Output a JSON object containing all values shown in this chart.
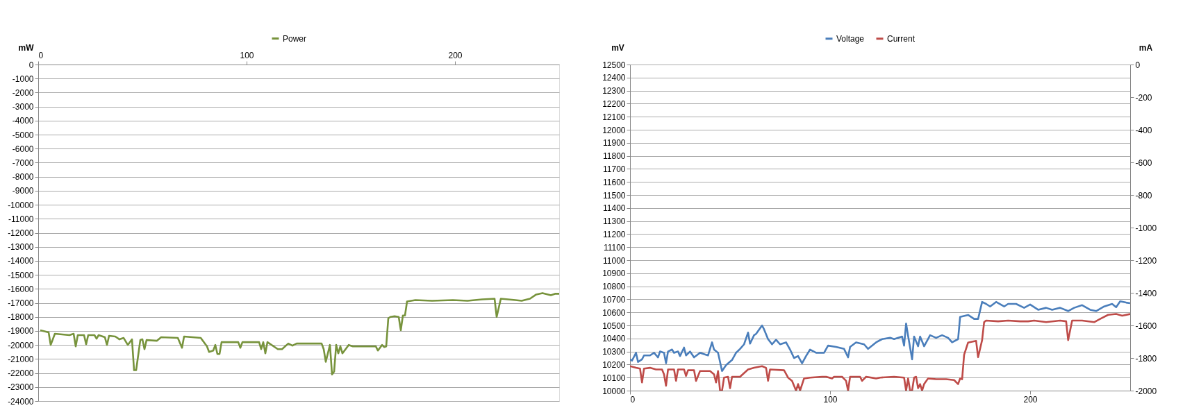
{
  "chart_data": [
    {
      "type": "line",
      "ylabel": "mW",
      "xlim": [
        0,
        250
      ],
      "xticks": [
        0,
        100,
        200
      ],
      "ylim": [
        -24000,
        0
      ],
      "yticks": [
        0,
        -1000,
        -2000,
        -3000,
        -4000,
        -5000,
        -6000,
        -7000,
        -8000,
        -9000,
        -10000,
        -11000,
        -12000,
        -13000,
        -14000,
        -15000,
        -16000,
        -17000,
        -18000,
        -19000,
        -20000,
        -21000,
        -22000,
        -23000,
        -24000
      ],
      "grid": "y",
      "legend": "top",
      "marker": "none",
      "line_style": "solid",
      "series": [
        {
          "name": "Power",
          "color": "#77933c",
          "x": [
            1,
            5,
            6,
            8,
            15,
            17,
            18,
            19,
            22,
            23,
            24,
            27,
            28,
            29,
            32,
            33,
            34,
            37,
            39,
            41,
            43,
            45,
            46,
            47,
            49,
            50,
            51,
            52,
            57,
            59,
            67,
            69,
            70,
            78,
            81,
            82,
            84,
            85,
            86,
            87,
            88,
            96,
            97,
            98,
            106,
            107,
            108,
            109,
            110,
            115,
            117,
            120,
            122,
            124,
            136,
            137,
            138,
            140,
            141,
            142,
            143,
            144,
            145,
            146,
            149,
            151,
            162,
            163,
            165,
            166,
            167,
            168,
            169,
            171,
            173,
            174,
            175,
            176,
            177,
            181,
            189,
            199,
            206,
            213,
            219,
            220,
            222,
            229,
            232,
            236,
            239,
            242,
            246,
            248,
            250
          ],
          "values": [
            -18950,
            -19100,
            -20000,
            -19200,
            -19300,
            -19200,
            -20100,
            -19300,
            -19300,
            -19950,
            -19300,
            -19300,
            -19550,
            -19300,
            -19450,
            -20000,
            -19350,
            -19400,
            -19600,
            -19500,
            -20000,
            -19600,
            -21800,
            -21800,
            -19650,
            -19600,
            -20300,
            -19650,
            -19700,
            -19450,
            -19500,
            -20200,
            -19400,
            -19500,
            -20100,
            -20500,
            -20400,
            -20000,
            -20650,
            -20650,
            -19800,
            -19800,
            -20200,
            -19800,
            -19800,
            -20300,
            -19800,
            -20600,
            -19800,
            -20300,
            -20300,
            -19900,
            -20050,
            -19900,
            -19900,
            -20300,
            -21200,
            -20000,
            -22100,
            -21900,
            -20000,
            -20600,
            -20100,
            -20600,
            -20000,
            -20100,
            -20100,
            -20400,
            -20000,
            -20150,
            -20100,
            -18100,
            -18000,
            -17950,
            -18000,
            -18950,
            -17900,
            -17900,
            -16900,
            -16800,
            -16850,
            -16800,
            -16850,
            -16750,
            -16700,
            -18000,
            -16700,
            -16800,
            -16850,
            -16700,
            -16400,
            -16300,
            -16450,
            -16350,
            -16350
          ]
        }
      ]
    },
    {
      "type": "line",
      "ylabel": "mV",
      "y2label": "mA",
      "xlim": [
        0,
        250
      ],
      "xticks": [
        0,
        100,
        200
      ],
      "ylim": [
        10000,
        12500
      ],
      "yticks": [
        10000,
        10100,
        10200,
        10300,
        10400,
        10500,
        10600,
        10700,
        10800,
        10900,
        11000,
        11100,
        11200,
        11300,
        11400,
        11500,
        11600,
        11700,
        11800,
        11900,
        12000,
        12100,
        12200,
        12300,
        12400,
        12500
      ],
      "y2lim": [
        -2000,
        0
      ],
      "y2ticks": [
        0,
        -200,
        -400,
        -600,
        -800,
        -1000,
        -1200,
        -1400,
        -1600,
        -1800,
        -2000
      ],
      "grid": "y",
      "legend": "top",
      "marker": "none",
      "line_style": "solid",
      "series": [
        {
          "name": "Voltage",
          "color": "#4a7ebb",
          "x": [
            0,
            1,
            3,
            4,
            6,
            7,
            10,
            12,
            14,
            15,
            17,
            18,
            19,
            21,
            22,
            24,
            25,
            27,
            28,
            30,
            32,
            35,
            39,
            41,
            42,
            44,
            46,
            48,
            51,
            53,
            55,
            57,
            59,
            60,
            62,
            63,
            66,
            67,
            69,
            71,
            73,
            75,
            78,
            80,
            82,
            84,
            86,
            88,
            90,
            93,
            97,
            99,
            103,
            107,
            109,
            110,
            113,
            117,
            119,
            123,
            126,
            130,
            132,
            136,
            137,
            138,
            139,
            141,
            142,
            144,
            145,
            147,
            150,
            153,
            156,
            159,
            161,
            164,
            165,
            169,
            172,
            174,
            176,
            178,
            180,
            183,
            187,
            189,
            193,
            197,
            200,
            204,
            208,
            211,
            215,
            219,
            222,
            226,
            230,
            233,
            237,
            241,
            243,
            245,
            248,
            250
          ],
          "values": [
            10240,
            10230,
            10290,
            10220,
            10240,
            10270,
            10270,
            10290,
            10255,
            10300,
            10290,
            10210,
            10300,
            10315,
            10290,
            10300,
            10265,
            10330,
            10270,
            10300,
            10255,
            10290,
            10270,
            10370,
            10315,
            10290,
            10150,
            10195,
            10235,
            10290,
            10320,
            10355,
            10445,
            10360,
            10425,
            10435,
            10500,
            10470,
            10395,
            10355,
            10390,
            10355,
            10370,
            10315,
            10250,
            10265,
            10210,
            10265,
            10315,
            10290,
            10290,
            10345,
            10335,
            10320,
            10255,
            10335,
            10370,
            10355,
            10320,
            10370,
            10395,
            10405,
            10395,
            10415,
            10345,
            10515,
            10420,
            10240,
            10415,
            10340,
            10415,
            10340,
            10425,
            10405,
            10425,
            10405,
            10370,
            10395,
            10565,
            10580,
            10550,
            10550,
            10680,
            10665,
            10645,
            10680,
            10645,
            10665,
            10665,
            10635,
            10660,
            10620,
            10635,
            10620,
            10635,
            10610,
            10635,
            10655,
            10620,
            10610,
            10645,
            10665,
            10640,
            10685,
            10675,
            10670
          ]
        },
        {
          "name": "Current",
          "color": "#be4b48",
          "axis": "y2",
          "x": [
            0,
            3,
            5,
            6,
            7,
            10,
            13,
            16,
            17,
            18,
            19,
            22,
            23,
            24,
            27,
            28,
            29,
            32,
            33,
            35,
            40,
            42,
            43,
            44,
            45,
            46,
            47,
            49,
            50,
            51,
            55,
            59,
            62,
            66,
            68,
            69,
            70,
            77,
            79,
            81,
            83,
            84,
            85,
            87,
            90,
            96,
            98,
            101,
            102,
            106,
            108,
            109,
            110,
            115,
            116,
            118,
            123,
            125,
            132,
            137,
            138,
            139,
            140,
            141,
            142,
            143,
            144,
            145,
            146,
            147,
            149,
            153,
            158,
            162,
            164,
            165,
            166,
            167,
            169,
            173,
            174,
            176,
            177,
            178,
            184,
            189,
            195,
            199,
            202,
            208,
            215,
            218,
            219,
            221,
            226,
            232,
            235,
            239,
            243,
            246,
            250
          ],
          "values": [
            -1850,
            -1860,
            -1865,
            -1950,
            -1865,
            -1860,
            -1870,
            -1870,
            -1900,
            -1970,
            -1870,
            -1870,
            -1940,
            -1870,
            -1870,
            -1910,
            -1875,
            -1875,
            -1940,
            -1880,
            -1880,
            -1900,
            -1950,
            -1880,
            -2000,
            -2000,
            -1920,
            -1915,
            -1985,
            -1915,
            -1915,
            -1870,
            -1860,
            -1850,
            -1860,
            -1940,
            -1870,
            -1875,
            -1920,
            -1940,
            -2000,
            -1960,
            -2000,
            -1925,
            -1920,
            -1915,
            -1915,
            -1925,
            -1915,
            -1915,
            -1940,
            -2000,
            -1915,
            -1915,
            -1940,
            -1915,
            -1925,
            -1920,
            -1915,
            -1920,
            -2000,
            -1925,
            -2000,
            -2000,
            -1920,
            -1915,
            -1985,
            -1960,
            -2000,
            -1960,
            -1925,
            -1930,
            -1930,
            -1935,
            -1960,
            -1925,
            -1930,
            -1780,
            -1705,
            -1695,
            -1795,
            -1690,
            -1580,
            -1570,
            -1575,
            -1570,
            -1575,
            -1575,
            -1570,
            -1580,
            -1570,
            -1575,
            -1690,
            -1570,
            -1570,
            -1580,
            -1560,
            -1535,
            -1530,
            -1540,
            -1530
          ]
        }
      ]
    }
  ]
}
